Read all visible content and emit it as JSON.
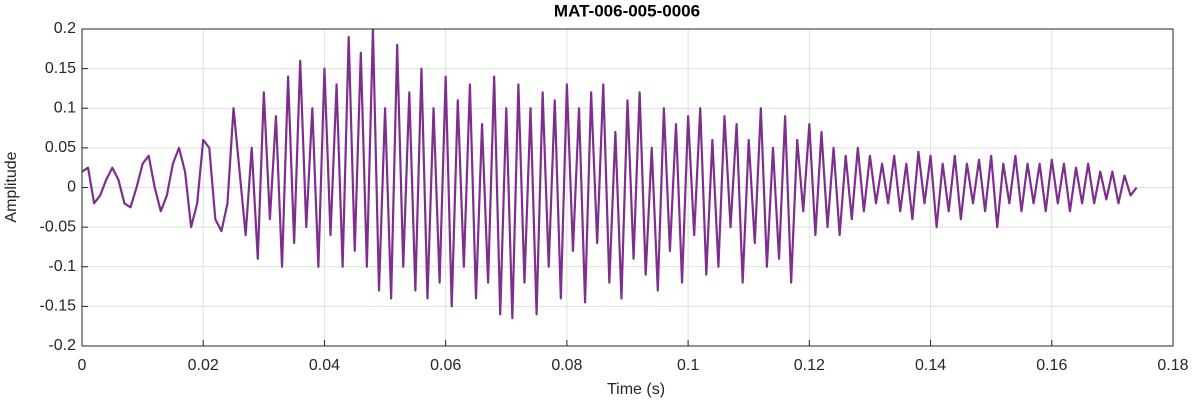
{
  "chart_data": {
    "type": "line",
    "title": "MAT-006-005-0006",
    "xlabel": "Time (s)",
    "ylabel": "Amplitude",
    "xlim": [
      0,
      0.18
    ],
    "ylim": [
      -0.2,
      0.2
    ],
    "xticks": [
      0,
      0.02,
      0.04,
      0.06,
      0.08,
      0.1,
      0.12,
      0.14,
      0.16,
      0.18
    ],
    "yticks": [
      -0.2,
      -0.15,
      -0.1,
      -0.05,
      0,
      0.05,
      0.1,
      0.15,
      0.2
    ],
    "grid": true,
    "x": [
      0,
      0.001,
      0.002,
      0.003,
      0.004,
      0.005,
      0.006,
      0.007,
      0.008,
      0.009,
      0.01,
      0.011,
      0.012,
      0.013,
      0.014,
      0.015,
      0.016,
      0.017,
      0.018,
      0.019,
      0.02,
      0.021,
      0.022,
      0.023,
      0.024,
      0.025,
      0.026,
      0.027,
      0.028,
      0.029,
      0.03,
      0.031,
      0.032,
      0.033,
      0.034,
      0.035,
      0.036,
      0.037,
      0.038,
      0.039,
      0.04,
      0.041,
      0.042,
      0.043,
      0.044,
      0.045,
      0.046,
      0.047,
      0.048,
      0.049,
      0.05,
      0.051,
      0.052,
      0.053,
      0.054,
      0.055,
      0.056,
      0.057,
      0.058,
      0.059,
      0.06,
      0.061,
      0.062,
      0.063,
      0.064,
      0.065,
      0.066,
      0.067,
      0.068,
      0.069,
      0.07,
      0.071,
      0.072,
      0.073,
      0.074,
      0.075,
      0.076,
      0.077,
      0.078,
      0.079,
      0.08,
      0.081,
      0.082,
      0.083,
      0.084,
      0.085,
      0.086,
      0.087,
      0.088,
      0.089,
      0.09,
      0.091,
      0.092,
      0.093,
      0.094,
      0.095,
      0.096,
      0.097,
      0.098,
      0.099,
      0.1,
      0.101,
      0.102,
      0.103,
      0.104,
      0.105,
      0.106,
      0.107,
      0.108,
      0.109,
      0.11,
      0.111,
      0.112,
      0.113,
      0.114,
      0.115,
      0.116,
      0.117,
      0.118,
      0.119,
      0.12,
      0.121,
      0.122,
      0.123,
      0.124,
      0.125,
      0.126,
      0.127,
      0.128,
      0.129,
      0.13,
      0.131,
      0.132,
      0.133,
      0.134,
      0.135,
      0.136,
      0.137,
      0.138,
      0.139,
      0.14,
      0.141,
      0.142,
      0.143,
      0.144,
      0.145,
      0.146,
      0.147,
      0.148,
      0.149,
      0.15,
      0.151,
      0.152,
      0.153,
      0.154,
      0.155,
      0.156,
      0.157,
      0.158,
      0.159,
      0.16,
      0.161,
      0.162,
      0.163,
      0.164,
      0.165,
      0.166,
      0.167,
      0.168,
      0.169,
      0.17,
      0.171,
      0.172,
      0.173,
      0.174
    ],
    "series": [
      {
        "color": "#7e2f8e",
        "values": [
          0.02,
          0.025,
          -0.02,
          -0.01,
          0.01,
          0.025,
          0.01,
          -0.02,
          -0.025,
          0,
          0.03,
          0.04,
          0,
          -0.03,
          -0.01,
          0.03,
          0.05,
          0.02,
          -0.05,
          -0.02,
          0.06,
          0.05,
          -0.04,
          -0.055,
          -0.02,
          0.1,
          0.02,
          -0.06,
          0.05,
          -0.09,
          0.12,
          -0.04,
          0.09,
          -0.1,
          0.14,
          -0.07,
          0.16,
          -0.05,
          0.1,
          -0.1,
          0.15,
          -0.06,
          0.13,
          -0.1,
          0.19,
          -0.08,
          0.17,
          -0.1,
          0.2,
          -0.13,
          0.1,
          -0.14,
          0.18,
          -0.1,
          0.12,
          -0.13,
          0.15,
          -0.14,
          0.1,
          -0.12,
          0.14,
          -0.15,
          0.11,
          -0.1,
          0.13,
          -0.14,
          0.08,
          -0.12,
          0.14,
          -0.16,
          0.1,
          -0.165,
          0.13,
          -0.12,
          0.1,
          -0.16,
          0.12,
          -0.1,
          0.11,
          -0.14,
          0.13,
          -0.08,
          0.1,
          -0.145,
          0.12,
          -0.07,
          0.13,
          -0.12,
          0.07,
          -0.14,
          0.11,
          -0.09,
          0.12,
          -0.11,
          0.05,
          -0.13,
          0.1,
          -0.08,
          0.08,
          -0.12,
          0.09,
          -0.06,
          0.1,
          -0.11,
          0.06,
          -0.1,
          0.09,
          -0.05,
          0.08,
          -0.12,
          0.06,
          -0.07,
          0.1,
          -0.1,
          0.05,
          -0.09,
          0.09,
          -0.12,
          0.06,
          -0.03,
          0.08,
          -0.06,
          0.07,
          -0.05,
          0.05,
          -0.06,
          0.04,
          -0.04,
          0.05,
          -0.03,
          0.04,
          -0.02,
          0.03,
          -0.02,
          0.04,
          -0.03,
          0.03,
          -0.04,
          0.045,
          -0.02,
          0.04,
          -0.05,
          0.03,
          -0.03,
          0.04,
          -0.04,
          0.03,
          -0.02,
          0.035,
          -0.03,
          0.04,
          -0.05,
          0.03,
          -0.02,
          0.04,
          -0.03,
          0.03,
          -0.02,
          0.03,
          -0.03,
          0.035,
          -0.02,
          0.03,
          -0.03,
          0.025,
          -0.02,
          0.03,
          -0.02,
          0.02,
          -0.015,
          0.02,
          -0.02,
          0.015,
          -0.01,
          0
        ]
      }
    ]
  }
}
